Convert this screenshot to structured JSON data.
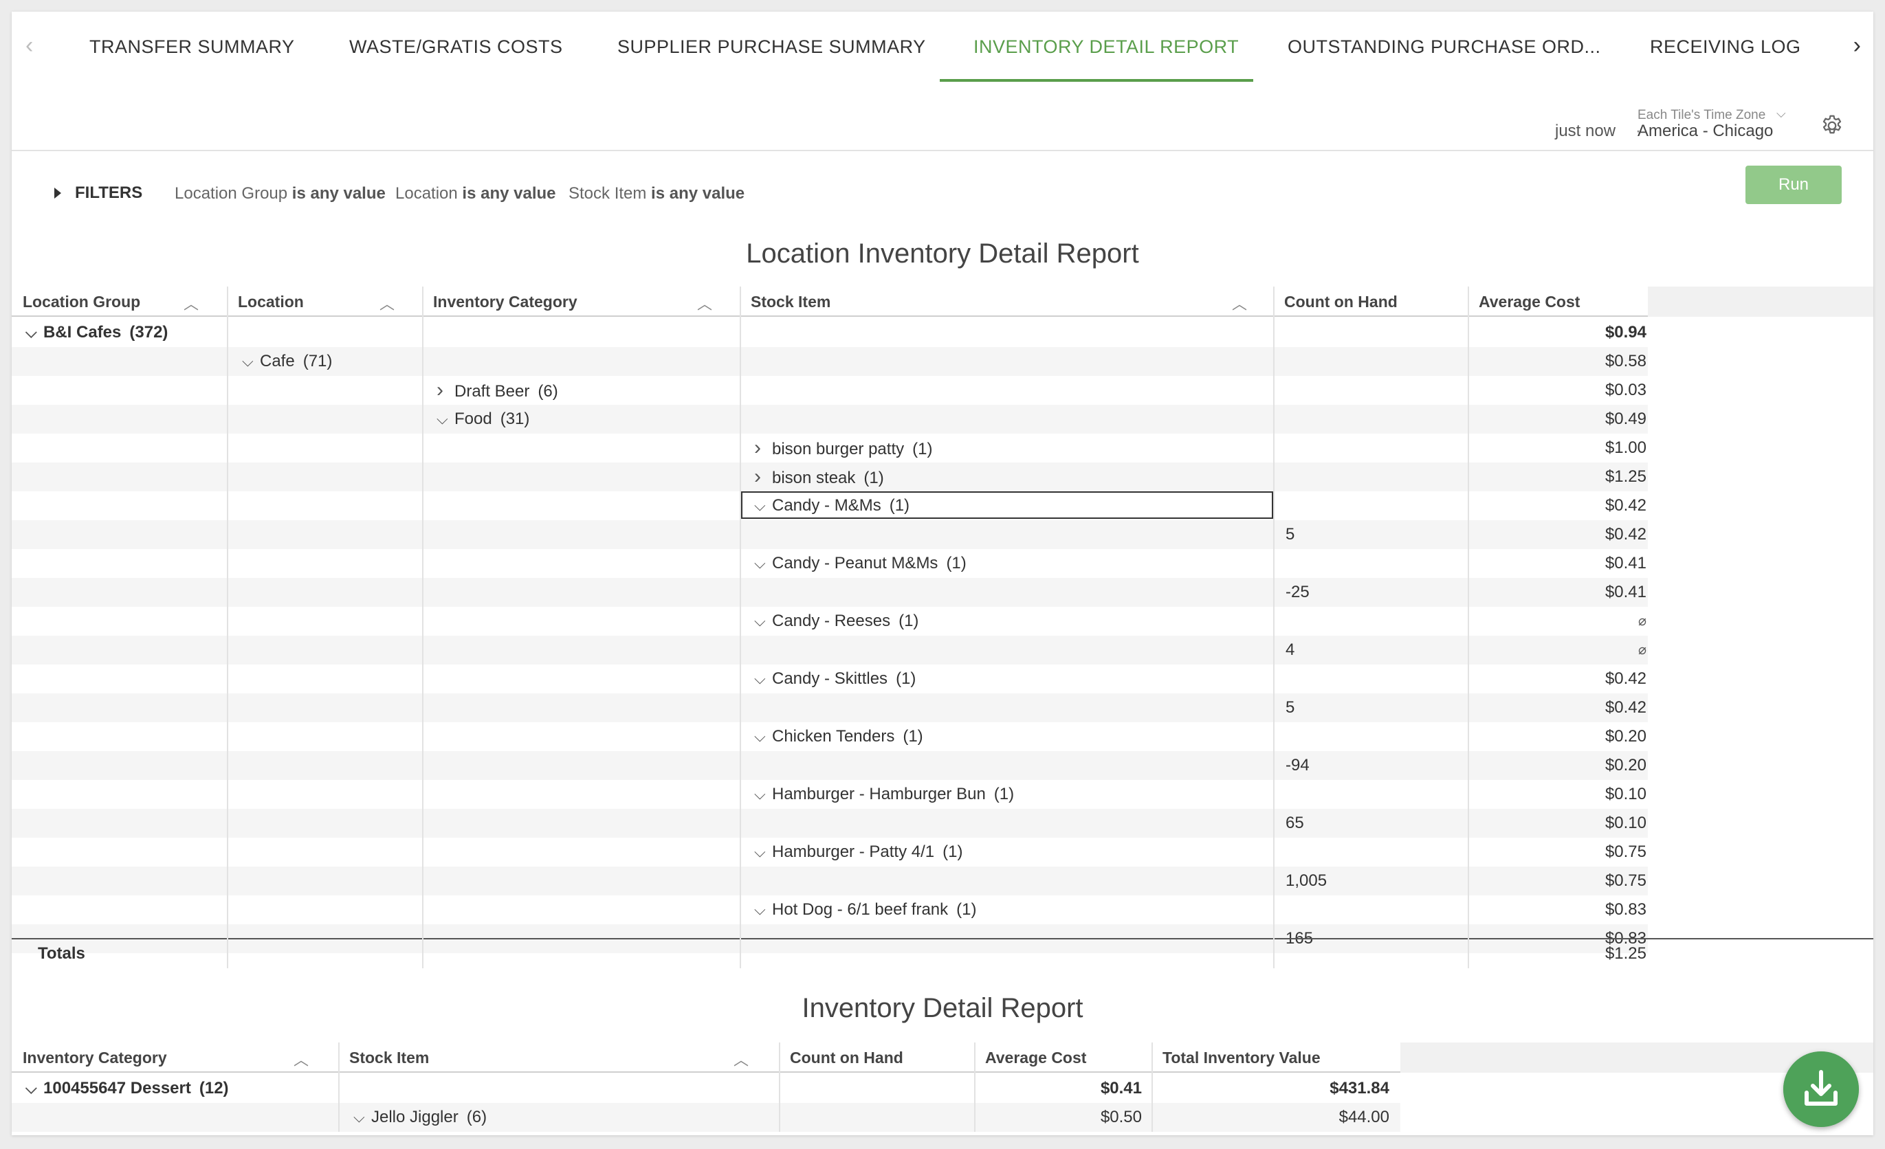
{
  "tabs": {
    "prev_arrow": "‹",
    "next_arrow": "›",
    "items": [
      {
        "label": "TRANSFER SUMMARY"
      },
      {
        "label": "WASTE/GRATIS COSTS"
      },
      {
        "label": "SUPPLIER PURCHASE SUMMARY"
      },
      {
        "label": "INVENTORY DETAIL REPORT"
      },
      {
        "label": "OUTSTANDING PURCHASE ORD..."
      },
      {
        "label": "RECEIVING LOG"
      }
    ],
    "active_index": 3
  },
  "status": {
    "last_run": "just now",
    "separator": "·",
    "timezone_label": "Each Tile's Time Zone",
    "timezone": "America - Chicago"
  },
  "filters": {
    "label": "FILTERS",
    "items": [
      {
        "field": "Location Group",
        "condition": "is any value"
      },
      {
        "field": "Location",
        "condition": "is any value"
      },
      {
        "field": "Stock Item",
        "condition": "is any value"
      }
    ],
    "run_label": "Run"
  },
  "report1": {
    "title": "Location Inventory Detail Report",
    "columns": [
      "Location Group",
      "Location",
      "Inventory Category",
      "Stock Item",
      "Count on Hand",
      "Average Cost"
    ],
    "rows": [
      {
        "group": "B&I Cafes",
        "group_count": "(372)",
        "avg": "$0.94",
        "bold": true
      },
      {
        "location": "Cafe",
        "location_count": "(71)",
        "avg": "$0.58"
      },
      {
        "category": "Draft Beer",
        "category_count": "(6)",
        "cat_expanded": false,
        "avg": "$0.03"
      },
      {
        "category": "Food",
        "category_count": "(31)",
        "cat_expanded": true,
        "avg": "$0.49"
      },
      {
        "item": "bison burger patty",
        "item_count": "(1)",
        "item_expanded": false,
        "avg": "$1.00"
      },
      {
        "item": "bison steak",
        "item_count": "(1)",
        "item_expanded": false,
        "avg": "$1.25"
      },
      {
        "item": "Candy - M&Ms",
        "item_count": "(1)",
        "item_expanded": true,
        "avg": "$0.42",
        "selected": true
      },
      {
        "count": "5",
        "avg": "$0.42"
      },
      {
        "item": "Candy - Peanut M&Ms",
        "item_count": "(1)",
        "item_expanded": true,
        "avg": "$0.41"
      },
      {
        "count": "-25",
        "avg": "$0.41"
      },
      {
        "item": "Candy - Reeses",
        "item_count": "(1)",
        "item_expanded": true,
        "avg": "⌀"
      },
      {
        "count": "4",
        "avg": "⌀"
      },
      {
        "item": "Candy - Skittles",
        "item_count": "(1)",
        "item_expanded": true,
        "avg": "$0.42"
      },
      {
        "count": "5",
        "avg": "$0.42"
      },
      {
        "item": "Chicken Tenders",
        "item_count": "(1)",
        "item_expanded": true,
        "avg": "$0.20"
      },
      {
        "count": "-94",
        "avg": "$0.20"
      },
      {
        "item": "Hamburger - Hamburger Bun",
        "item_count": "(1)",
        "item_expanded": true,
        "avg": "$0.10"
      },
      {
        "count": "65",
        "avg": "$0.10"
      },
      {
        "item": "Hamburger - Patty 4/1",
        "item_count": "(1)",
        "item_expanded": true,
        "avg": "$0.75"
      },
      {
        "count": "1,005",
        "avg": "$0.75"
      },
      {
        "item": "Hot Dog - 6/1 beef frank",
        "item_count": "(1)",
        "item_expanded": true,
        "avg": "$0.83"
      },
      {
        "count": "165",
        "avg": "$0.83"
      }
    ],
    "totals_label": "Totals",
    "totals_avg": "$1.25"
  },
  "report2": {
    "title": "Inventory Detail Report",
    "columns": [
      "Inventory Category",
      "Stock Item",
      "Count on Hand",
      "Average Cost",
      "Total Inventory Value"
    ],
    "rows": [
      {
        "category": "100455647 Dessert",
        "category_count": "(12)",
        "avg": "$0.41",
        "total": "$431.84",
        "bold": true
      },
      {
        "item": "Jello Jiggler",
        "item_count": "(6)",
        "avg": "$0.50",
        "total": "$44.00"
      }
    ]
  },
  "colors": {
    "accent": "#5a9e4b",
    "run_button": "#92c98a",
    "fab": "#4ea259"
  },
  "icons": {
    "gear": "gear-icon",
    "download": "download-icon"
  }
}
